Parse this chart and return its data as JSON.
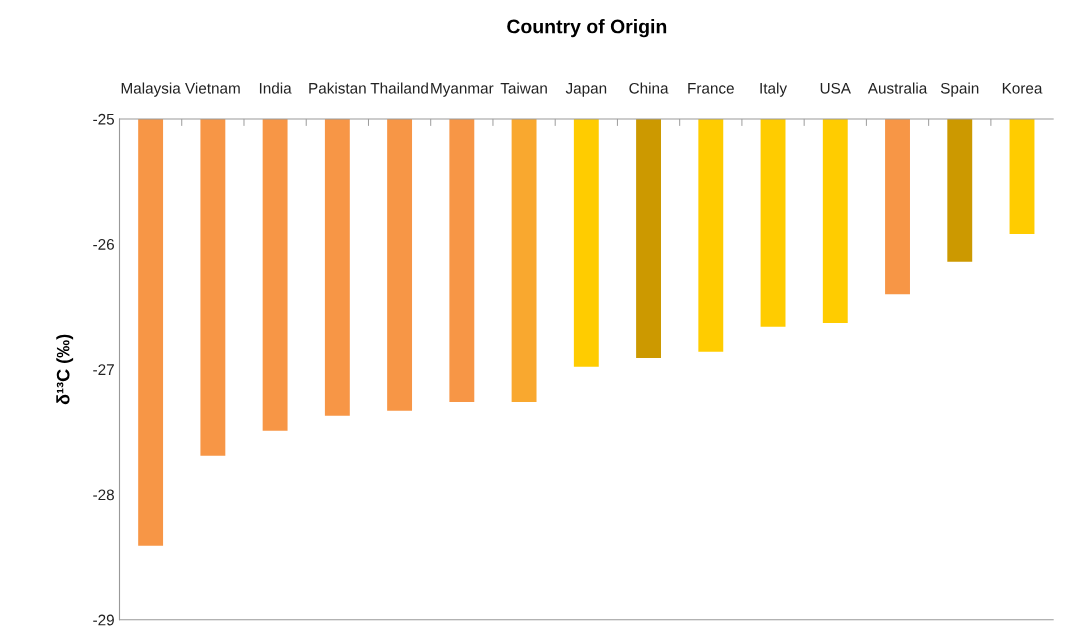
{
  "chart_data": {
    "type": "bar",
    "title": "Country of Origin",
    "ylabel": "δ¹³C (‰)",
    "categories": [
      "Malaysia",
      "Vietnam",
      "India",
      "Pakistan",
      "Thailand",
      "Myanmar",
      "Taiwan",
      "Japan",
      "China",
      "France",
      "Italy",
      "USA",
      "Australia",
      "Spain",
      "Korea"
    ],
    "values": [
      -28.41,
      -27.69,
      -27.49,
      -27.37,
      -27.33,
      -27.26,
      -27.26,
      -26.98,
      -26.91,
      -26.86,
      -26.66,
      -26.63,
      -26.4,
      -26.14,
      -25.92
    ],
    "colors": [
      "#f79646",
      "#f79646",
      "#f79646",
      "#f79646",
      "#f79646",
      "#f79646",
      "#f9a82f",
      "#ffcc00",
      "#cc9900",
      "#ffcc00",
      "#ffcc00",
      "#ffcc00",
      "#f79646",
      "#cc9900",
      "#ffcc00"
    ],
    "ylim": [
      -29,
      -25
    ],
    "yticks": [
      -29,
      -28,
      -27,
      -26,
      -25
    ],
    "grid": false,
    "legend": false
  }
}
